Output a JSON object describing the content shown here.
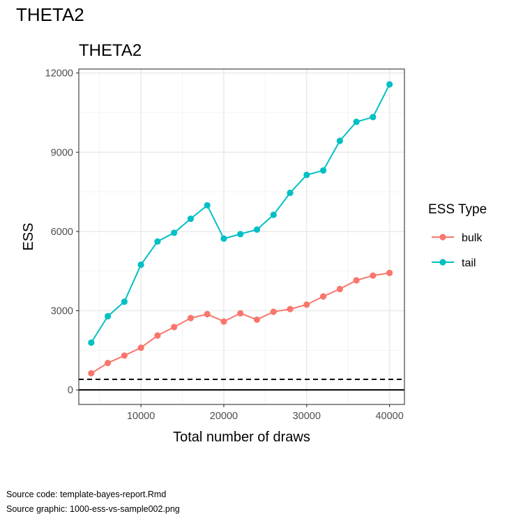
{
  "page": {
    "title": "THETA2",
    "footer_code": "Source code: template-bayes-report.Rmd",
    "footer_graphic": "Source graphic: 1000-ess-vs-sample002.png"
  },
  "chart_data": {
    "type": "line",
    "title": "THETA2",
    "xlabel": "Total number of draws",
    "ylabel": "ESS",
    "xlim": [
      2500,
      41800
    ],
    "ylim": [
      -550,
      12150
    ],
    "x_ticks": [
      10000,
      20000,
      30000,
      40000
    ],
    "x_tick_labels": [
      "10000",
      "20000",
      "30000",
      "40000"
    ],
    "y_ticks": [
      0,
      3000,
      6000,
      9000,
      12000
    ],
    "y_tick_labels": [
      "0",
      "3000",
      "6000",
      "9000",
      "12000"
    ],
    "grid": true,
    "legend": {
      "title": "ESS Type",
      "position": "right"
    },
    "x": [
      4000,
      6000,
      8000,
      10000,
      12000,
      14000,
      16000,
      18000,
      20000,
      22000,
      24000,
      26000,
      28000,
      30000,
      32000,
      34000,
      36000,
      38000,
      40000
    ],
    "series": [
      {
        "name": "bulk",
        "color": "#F8766D",
        "values": [
          630,
          1020,
          1300,
          1600,
          2060,
          2380,
          2720,
          2870,
          2590,
          2900,
          2660,
          2960,
          3060,
          3230,
          3540,
          3820,
          4150,
          4330,
          4430
        ]
      },
      {
        "name": "tail",
        "color": "#00BFC4",
        "values": [
          1790,
          2790,
          3340,
          4740,
          5620,
          5950,
          6480,
          6990,
          5730,
          5900,
          6070,
          6630,
          7460,
          8140,
          8310,
          9430,
          10150,
          10330,
          11570
        ]
      }
    ],
    "reference_lines": [
      {
        "y": 0,
        "style": "solid",
        "color": "#000000"
      },
      {
        "y": 400,
        "style": "dashed",
        "color": "#000000"
      }
    ]
  }
}
